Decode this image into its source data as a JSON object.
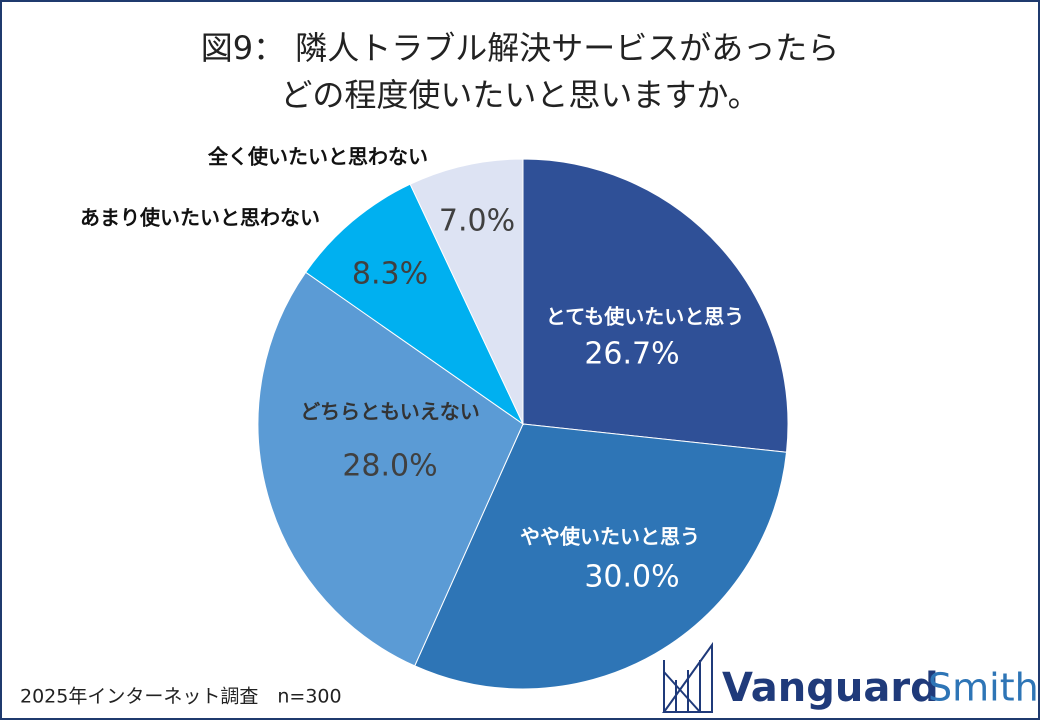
{
  "chart_data": {
    "type": "pie",
    "title": [
      "図9： 隣人トラブル解決サービスがあったら",
      "どの程度使いたいと思いますか。"
    ],
    "categories": [
      "とても使いたいと思う",
      "やや使いたいと思う",
      "どちらともいえない",
      "あまり使いたいと思わない",
      "全く使いたいと思わない"
    ],
    "values": [
      26.7,
      30.0,
      28.0,
      8.3,
      7.0
    ],
    "value_labels": [
      "26.7%",
      "30.0%",
      "28.0%",
      "8.3%",
      "7.0%"
    ],
    "colors": [
      "#2f5097",
      "#2e75b6",
      "#5b9bd5",
      "#00b0f0",
      "#dde3f3"
    ],
    "footnote": "2025年インターネット調査　n=300",
    "logo": [
      "Vanguard",
      "Smith"
    ]
  }
}
